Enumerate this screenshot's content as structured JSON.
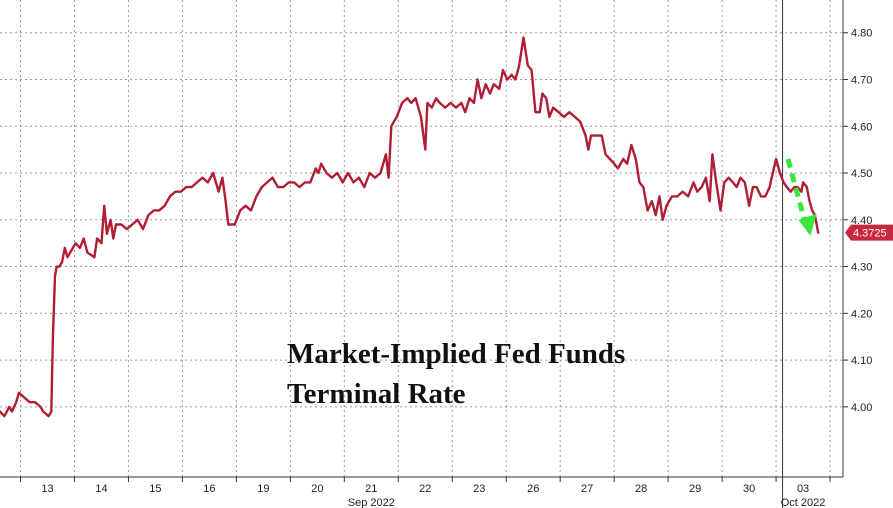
{
  "chart_data": {
    "type": "line",
    "title": "Market-Implied Fed Funds Terminal Rate",
    "title_lines": [
      "Market-Implied Fed Funds",
      "Terminal Rate"
    ],
    "ylim": [
      3.85,
      4.87
    ],
    "yticks": [
      4.0,
      4.1,
      4.2,
      4.3,
      4.4,
      4.5,
      4.6,
      4.7,
      4.8
    ],
    "ytick_labels": [
      "4.00",
      "4.10",
      "4.20",
      "4.30",
      "4.40",
      "4.50",
      "4.60",
      "4.70",
      "4.80"
    ],
    "xlim": [
      0,
      15.62
    ],
    "x_ticks": [
      {
        "x": 0.88,
        "label": "13"
      },
      {
        "x": 1.88,
        "label": "14"
      },
      {
        "x": 2.88,
        "label": "15"
      },
      {
        "x": 3.88,
        "label": "16"
      },
      {
        "x": 4.88,
        "label": "19"
      },
      {
        "x": 5.88,
        "label": "20"
      },
      {
        "x": 6.88,
        "label": "21"
      },
      {
        "x": 7.88,
        "label": "22"
      },
      {
        "x": 8.88,
        "label": "23"
      },
      {
        "x": 9.88,
        "label": "26"
      },
      {
        "x": 10.88,
        "label": "27"
      },
      {
        "x": 11.88,
        "label": "28"
      },
      {
        "x": 12.88,
        "label": "29"
      },
      {
        "x": 13.88,
        "label": "30"
      },
      {
        "x": 14.88,
        "label": "03"
      }
    ],
    "month_labels": [
      {
        "x": 6.88,
        "label": "Sep 2022"
      },
      {
        "x": 14.88,
        "label": "Oct 2022"
      }
    ],
    "month_separator_x": 14.5,
    "last_value": 4.3725,
    "last_value_label": "4.3725",
    "grid": true,
    "colors": {
      "line": "#B01E36",
      "grid": "#9a9a9a",
      "arrow": "#39E639",
      "last_badge": "#C8283E"
    },
    "series": [
      {
        "values": [
          [
            0.0,
            3.99
          ],
          [
            0.08,
            3.98
          ],
          [
            0.17,
            4.0
          ],
          [
            0.22,
            3.99
          ],
          [
            0.3,
            4.01
          ],
          [
            0.35,
            4.03
          ],
          [
            0.45,
            4.02
          ],
          [
            0.55,
            4.01
          ],
          [
            0.65,
            4.01
          ],
          [
            0.75,
            4.0
          ],
          [
            0.8,
            3.99
          ],
          [
            0.9,
            3.98
          ],
          [
            0.95,
            3.99
          ],
          [
            0.98,
            4.15
          ],
          [
            1.02,
            4.28
          ],
          [
            1.05,
            4.3
          ],
          [
            1.1,
            4.3
          ],
          [
            1.15,
            4.31
          ],
          [
            1.2,
            4.34
          ],
          [
            1.25,
            4.32
          ],
          [
            1.3,
            4.33
          ],
          [
            1.4,
            4.35
          ],
          [
            1.48,
            4.34
          ],
          [
            1.55,
            4.36
          ],
          [
            1.62,
            4.33
          ],
          [
            1.75,
            4.32
          ],
          [
            1.8,
            4.36
          ],
          [
            1.88,
            4.35
          ],
          [
            1.93,
            4.43
          ],
          [
            1.98,
            4.37
          ],
          [
            2.05,
            4.4
          ],
          [
            2.1,
            4.36
          ],
          [
            2.15,
            4.39
          ],
          [
            2.25,
            4.39
          ],
          [
            2.35,
            4.38
          ],
          [
            2.45,
            4.39
          ],
          [
            2.55,
            4.4
          ],
          [
            2.65,
            4.38
          ],
          [
            2.75,
            4.41
          ],
          [
            2.85,
            4.42
          ],
          [
            2.95,
            4.42
          ],
          [
            3.05,
            4.43
          ],
          [
            3.15,
            4.45
          ],
          [
            3.25,
            4.46
          ],
          [
            3.35,
            4.46
          ],
          [
            3.45,
            4.47
          ],
          [
            3.55,
            4.47
          ],
          [
            3.65,
            4.48
          ],
          [
            3.75,
            4.49
          ],
          [
            3.85,
            4.48
          ],
          [
            3.95,
            4.5
          ],
          [
            4.05,
            4.46
          ],
          [
            4.12,
            4.49
          ],
          [
            4.18,
            4.44
          ],
          [
            4.23,
            4.39
          ],
          [
            4.35,
            4.39
          ],
          [
            4.45,
            4.42
          ],
          [
            4.55,
            4.43
          ],
          [
            4.65,
            4.42
          ],
          [
            4.75,
            4.45
          ],
          [
            4.85,
            4.47
          ],
          [
            4.95,
            4.48
          ],
          [
            5.05,
            4.49
          ],
          [
            5.15,
            4.47
          ],
          [
            5.25,
            4.47
          ],
          [
            5.35,
            4.48
          ],
          [
            5.45,
            4.48
          ],
          [
            5.55,
            4.47
          ],
          [
            5.65,
            4.48
          ],
          [
            5.75,
            4.48
          ],
          [
            5.85,
            4.51
          ],
          [
            5.9,
            4.5
          ],
          [
            5.95,
            4.52
          ],
          [
            6.05,
            4.5
          ],
          [
            6.15,
            4.49
          ],
          [
            6.25,
            4.5
          ],
          [
            6.35,
            4.48
          ],
          [
            6.45,
            4.5
          ],
          [
            6.55,
            4.48
          ],
          [
            6.65,
            4.49
          ],
          [
            6.75,
            4.47
          ],
          [
            6.85,
            4.5
          ],
          [
            6.95,
            4.49
          ],
          [
            7.05,
            4.5
          ],
          [
            7.15,
            4.54
          ],
          [
            7.2,
            4.49
          ],
          [
            7.25,
            4.6
          ],
          [
            7.35,
            4.62
          ],
          [
            7.45,
            4.65
          ],
          [
            7.55,
            4.66
          ],
          [
            7.62,
            4.65
          ],
          [
            7.7,
            4.66
          ],
          [
            7.8,
            4.62
          ],
          [
            7.88,
            4.55
          ],
          [
            7.92,
            4.65
          ],
          [
            8.0,
            4.64
          ],
          [
            8.08,
            4.66
          ],
          [
            8.15,
            4.65
          ],
          [
            8.25,
            4.64
          ],
          [
            8.35,
            4.65
          ],
          [
            8.45,
            4.64
          ],
          [
            8.55,
            4.65
          ],
          [
            8.62,
            4.63
          ],
          [
            8.7,
            4.66
          ],
          [
            8.78,
            4.65
          ],
          [
            8.85,
            4.7
          ],
          [
            8.92,
            4.66
          ],
          [
            9.0,
            4.69
          ],
          [
            9.08,
            4.67
          ],
          [
            9.15,
            4.69
          ],
          [
            9.25,
            4.68
          ],
          [
            9.32,
            4.72
          ],
          [
            9.4,
            4.7
          ],
          [
            9.48,
            4.71
          ],
          [
            9.55,
            4.7
          ],
          [
            9.62,
            4.73
          ],
          [
            9.7,
            4.79
          ],
          [
            9.78,
            4.73
          ],
          [
            9.85,
            4.72
          ],
          [
            9.92,
            4.63
          ],
          [
            10.0,
            4.63
          ],
          [
            10.05,
            4.67
          ],
          [
            10.12,
            4.66
          ],
          [
            10.18,
            4.62
          ],
          [
            10.25,
            4.64
          ],
          [
            10.35,
            4.63
          ],
          [
            10.45,
            4.62
          ],
          [
            10.55,
            4.63
          ],
          [
            10.65,
            4.62
          ],
          [
            10.75,
            4.61
          ],
          [
            10.85,
            4.58
          ],
          [
            10.9,
            4.55
          ],
          [
            10.95,
            4.58
          ],
          [
            11.05,
            4.58
          ],
          [
            11.15,
            4.58
          ],
          [
            11.22,
            4.54
          ],
          [
            11.3,
            4.53
          ],
          [
            11.38,
            4.52
          ],
          [
            11.45,
            4.51
          ],
          [
            11.55,
            4.53
          ],
          [
            11.62,
            4.52
          ],
          [
            11.7,
            4.56
          ],
          [
            11.78,
            4.53
          ],
          [
            11.85,
            4.48
          ],
          [
            11.92,
            4.47
          ],
          [
            12.0,
            4.42
          ],
          [
            12.08,
            4.44
          ],
          [
            12.15,
            4.41
          ],
          [
            12.22,
            4.45
          ],
          [
            12.28,
            4.4
          ],
          [
            12.35,
            4.43
          ],
          [
            12.45,
            4.45
          ],
          [
            12.55,
            4.45
          ],
          [
            12.65,
            4.46
          ],
          [
            12.75,
            4.45
          ],
          [
            12.85,
            4.48
          ],
          [
            12.92,
            4.46
          ],
          [
            13.0,
            4.47
          ],
          [
            13.08,
            4.49
          ],
          [
            13.15,
            4.44
          ],
          [
            13.2,
            4.54
          ],
          [
            13.27,
            4.48
          ],
          [
            13.35,
            4.42
          ],
          [
            13.42,
            4.48
          ],
          [
            13.5,
            4.49
          ],
          [
            13.58,
            4.48
          ],
          [
            13.65,
            4.47
          ],
          [
            13.72,
            4.49
          ],
          [
            13.8,
            4.48
          ],
          [
            13.88,
            4.43
          ],
          [
            13.95,
            4.47
          ],
          [
            14.02,
            4.47
          ],
          [
            14.1,
            4.45
          ],
          [
            14.18,
            4.45
          ],
          [
            14.26,
            4.47
          ],
          [
            14.32,
            4.5
          ],
          [
            14.38,
            4.53
          ],
          [
            14.45,
            4.5
          ],
          [
            14.52,
            4.48
          ],
          [
            14.58,
            4.47
          ],
          [
            14.65,
            4.46
          ],
          [
            14.72,
            4.47
          ],
          [
            14.78,
            4.47
          ],
          [
            14.85,
            4.46
          ],
          [
            14.88,
            4.48
          ],
          [
            14.95,
            4.47
          ],
          [
            15.0,
            4.44
          ],
          [
            15.05,
            4.42
          ],
          [
            15.1,
            4.41
          ],
          [
            15.16,
            4.3725
          ]
        ]
      }
    ]
  }
}
